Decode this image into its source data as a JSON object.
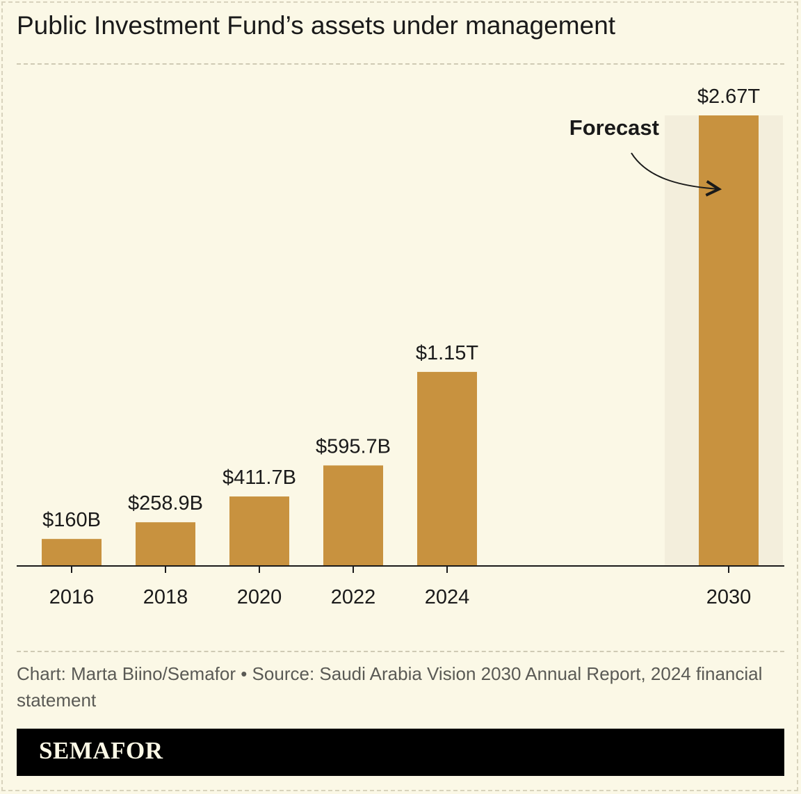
{
  "title": "Public Investment Fund’s assets under management",
  "source": "Chart: Marta Biino/Semafor • Source: Saudi Arabia Vision 2030 Annual Report, 2024 financial statement",
  "brand": "SEMAFOR",
  "chart_data": {
    "type": "bar",
    "categories": [
      "2016",
      "2018",
      "2020",
      "2022",
      "2024",
      "2030"
    ],
    "values": [
      160,
      258.9,
      411.7,
      595.7,
      1150,
      2670
    ],
    "value_unit": "billion USD",
    "data_labels": [
      "$160B",
      "$258.9B",
      "$411.7B",
      "$595.7B",
      "$1.15T",
      "$2.67T"
    ],
    "forecast_categories": [
      "2030"
    ],
    "annotation": "Forecast",
    "ylim": [
      0,
      2670
    ],
    "grid": false,
    "bar_color": "#c8923f",
    "forecast_band_color": "#f3eedc"
  }
}
